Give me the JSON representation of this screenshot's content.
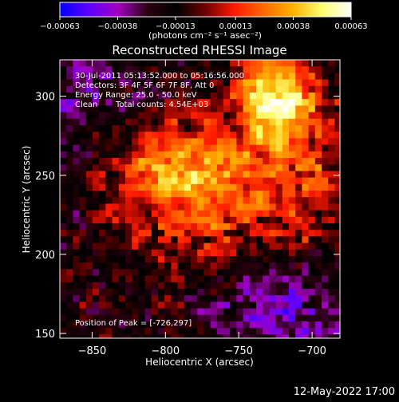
{
  "chart_data": {
    "type": "heatmap",
    "title": "Reconstructed RHESSI Image",
    "xlabel": "Heliocentric X (arcsec)",
    "ylabel": "Heliocentric Y (arcsec)",
    "xlim": [
      -872,
      -681
    ],
    "ylim": [
      147,
      323
    ],
    "x_ticks": [
      -850,
      -800,
      -750,
      -700
    ],
    "x_tick_labels": [
      "−850",
      "−800",
      "−750",
      "−700"
    ],
    "y_ticks": [
      150,
      200,
      250,
      300
    ],
    "y_tick_labels": [
      "150",
      "200",
      "250",
      "300"
    ],
    "colorbar": {
      "range": [
        -0.00063,
        0.00063
      ],
      "ticks": [
        -0.00063,
        -0.00038,
        -0.00013,
        0.00013,
        0.00038,
        0.00063
      ],
      "tick_labels": [
        "−0.00063",
        "−0.00038",
        "−0.00013",
        "0.00013",
        "0.00038",
        "0.00063"
      ],
      "units": "(photons cm⁻² s⁻¹ asec⁻²)",
      "colors": [
        "#0000ff",
        "#6000ff",
        "#a000c0",
        "#2a0010",
        "#000000",
        "#700000",
        "#ff1a00",
        "#ff6a00",
        "#ffb000",
        "#ffff70",
        "#ffffff"
      ]
    },
    "annotations": [
      "30-Jul-2011 05:13:52.000 to 05:16:56.000",
      "Detectors: 3F 4F 5F 6F 7F 8F, Att 0",
      "Energy Range: 25.0 - 50.0 keV",
      "Clean",
      "Total counts: 4.54E+03"
    ],
    "peak_label": "Position of Peak = [-726,297]",
    "peak": {
      "x": -726,
      "y": 297
    },
    "grid": false
  },
  "footer": {
    "timestamp": "12-May-2022 17:00"
  }
}
